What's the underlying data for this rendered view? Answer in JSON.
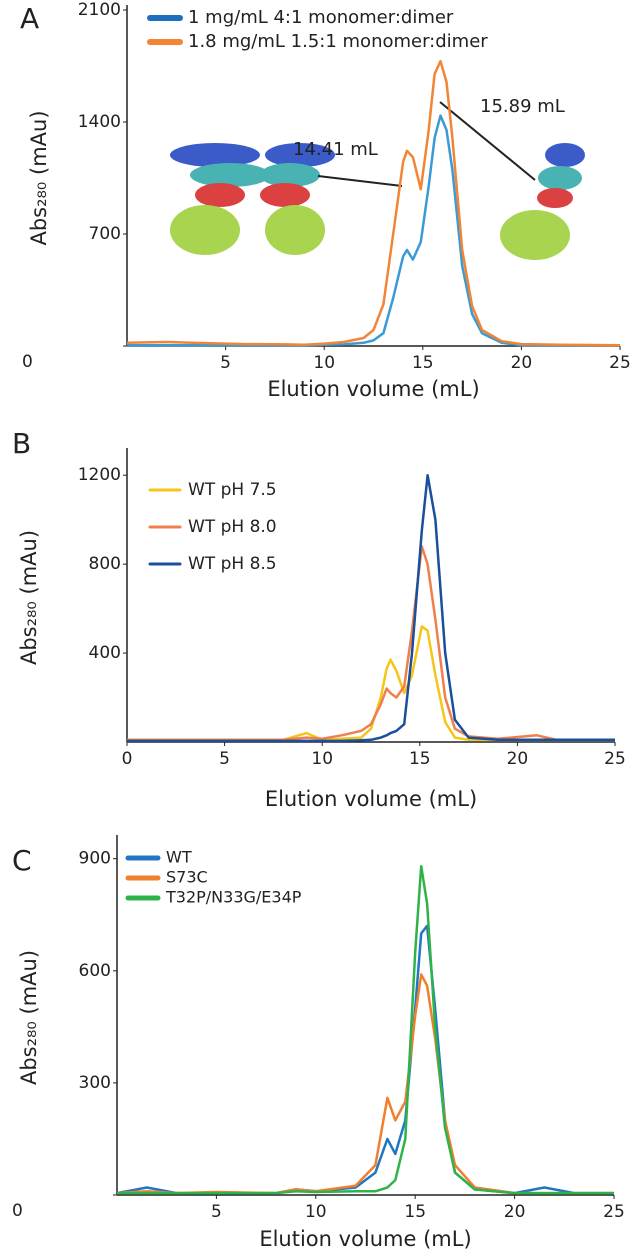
{
  "chart_data": [
    {
      "type": "line",
      "label": "A",
      "x_label": "Elution volume (mL)",
      "y_label": "Abs₂₈₀ (mAu)",
      "xlim": [
        0,
        25
      ],
      "xticks": [
        5,
        10,
        15,
        20,
        25
      ],
      "ylim": [
        0,
        2100
      ],
      "yticks": [
        0,
        700,
        1400,
        2100
      ],
      "annotations": [
        "14.41 mL",
        "15.89 mL"
      ],
      "x": [
        0,
        2,
        4,
        6,
        8,
        9,
        10,
        11,
        12,
        12.5,
        13,
        13.5,
        14,
        14.2,
        14.5,
        14.9,
        15.3,
        15.6,
        15.9,
        16.2,
        16.5,
        17,
        17.5,
        18,
        19,
        20,
        22,
        25
      ],
      "series": [
        {
          "name": "1 mg/mL 4:1 monomer:dimer",
          "color": "#3a9ad6",
          "legend_color": "#1f6fc0",
          "values": [
            5,
            5,
            5,
            5,
            5,
            5,
            8,
            10,
            20,
            35,
            80,
            300,
            560,
            600,
            540,
            650,
            1000,
            1300,
            1440,
            1350,
            1100,
            500,
            200,
            80,
            20,
            5,
            5,
            5
          ]
        },
        {
          "name": "1.8 mg/mL 1.5:1 monomer:dimer",
          "color": "#f28535",
          "legend_color": "#f28535",
          "values": [
            20,
            25,
            18,
            12,
            10,
            8,
            15,
            25,
            50,
            100,
            260,
            700,
            1150,
            1220,
            1180,
            980,
            1350,
            1700,
            1780,
            1650,
            1300,
            600,
            250,
            100,
            30,
            12,
            8,
            5
          ]
        }
      ]
    },
    {
      "type": "line",
      "label": "B",
      "x_label": "Elution volume (mL)",
      "y_label": "Abs₂₈₀ (mAu)",
      "xlim": [
        0,
        25
      ],
      "xticks": [
        0,
        5,
        10,
        15,
        20,
        25
      ],
      "ylim": [
        0,
        1300
      ],
      "yticks": [
        400,
        800,
        1200
      ],
      "x": [
        0,
        5,
        8,
        9.2,
        10,
        11,
        12,
        12.5,
        13,
        13.3,
        13.5,
        13.8,
        14.2,
        14.6,
        15.1,
        15.4,
        15.8,
        16.3,
        16.8,
        17.5,
        19,
        21,
        22,
        25
      ],
      "series": [
        {
          "name": "WT pH 7.5",
          "color": "#f5c518",
          "values": [
            10,
            10,
            10,
            40,
            10,
            15,
            20,
            60,
            200,
            330,
            370,
            320,
            220,
            300,
            520,
            500,
            300,
            90,
            20,
            10,
            10,
            10,
            10,
            10
          ]
        },
        {
          "name": "WT pH 8.0",
          "color": "#f0804a",
          "values": [
            10,
            10,
            10,
            20,
            15,
            30,
            50,
            80,
            170,
            240,
            220,
            200,
            250,
            500,
            880,
            800,
            550,
            200,
            60,
            25,
            15,
            30,
            10,
            10
          ]
        },
        {
          "name": "WT pH 8.5",
          "color": "#1a4f9c",
          "values": [
            5,
            5,
            5,
            5,
            5,
            5,
            8,
            10,
            20,
            30,
            40,
            50,
            80,
            400,
            950,
            1200,
            1000,
            400,
            100,
            20,
            10,
            10,
            10,
            10
          ]
        }
      ]
    },
    {
      "type": "line",
      "label": "C",
      "x_label": "Elution volume (mL)",
      "y_label": "Abs₂₈₀ (mAu)",
      "xlim": [
        0,
        25
      ],
      "xticks": [
        5,
        10,
        15,
        20,
        25
      ],
      "ylim": [
        0,
        950
      ],
      "yticks": [
        0,
        300,
        600,
        900
      ],
      "x": [
        0,
        1.5,
        3,
        5,
        8,
        9,
        10,
        12,
        13,
        13.6,
        14,
        14.5,
        15,
        15.3,
        15.6,
        16,
        16.5,
        17,
        18,
        20,
        21.5,
        23,
        25
      ],
      "series": [
        {
          "name": "WT",
          "color": "#1f77c4",
          "values": [
            5,
            20,
            5,
            5,
            5,
            15,
            10,
            20,
            60,
            150,
            110,
            200,
            500,
            700,
            720,
            500,
            200,
            60,
            15,
            5,
            20,
            5,
            5
          ]
        },
        {
          "name": "S73C",
          "color": "#f07f2e",
          "values": [
            5,
            10,
            5,
            8,
            5,
            15,
            10,
            25,
            80,
            260,
            200,
            250,
            480,
            590,
            560,
            420,
            200,
            80,
            20,
            5,
            5,
            5,
            5
          ]
        },
        {
          "name": "T32P/N33G/E34P",
          "color": "#2db34a",
          "values": [
            5,
            5,
            5,
            5,
            5,
            10,
            8,
            10,
            10,
            20,
            40,
            150,
            650,
            880,
            780,
            450,
            180,
            60,
            15,
            5,
            5,
            5,
            5
          ]
        }
      ]
    }
  ]
}
